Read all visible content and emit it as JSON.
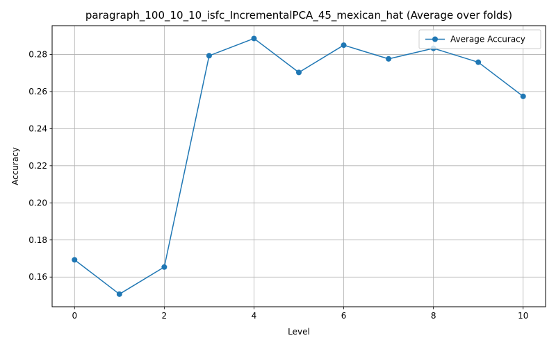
{
  "chart_data": {
    "type": "line",
    "title": "paragraph_100_10_10_isfc_IncrementalPCA_45_mexican_hat (Average over folds)",
    "xlabel": "Level",
    "ylabel": "Accuracy",
    "xlim": [
      -0.5,
      10.5
    ],
    "ylim": [
      0.144,
      0.2955
    ],
    "xticks": [
      0,
      2,
      4,
      6,
      8,
      10
    ],
    "xtick_labels": [
      "0",
      "2",
      "4",
      "6",
      "8",
      "10"
    ],
    "yticks": [
      0.16,
      0.18,
      0.2,
      0.22,
      0.24,
      0.26,
      0.28
    ],
    "ytick_labels": [
      "0.16",
      "0.18",
      "0.20",
      "0.22",
      "0.24",
      "0.26",
      "0.28"
    ],
    "grid": true,
    "legend_position": "top-right",
    "series": [
      {
        "name": "Average Accuracy",
        "color": "#1f77b4",
        "marker": "circle",
        "x": [
          0,
          1,
          2,
          3,
          4,
          5,
          6,
          7,
          8,
          9,
          10
        ],
        "y": [
          0.1693,
          0.1508,
          0.1654,
          0.2793,
          0.2886,
          0.2703,
          0.285,
          0.2776,
          0.2833,
          0.2758,
          0.2574
        ]
      }
    ]
  }
}
